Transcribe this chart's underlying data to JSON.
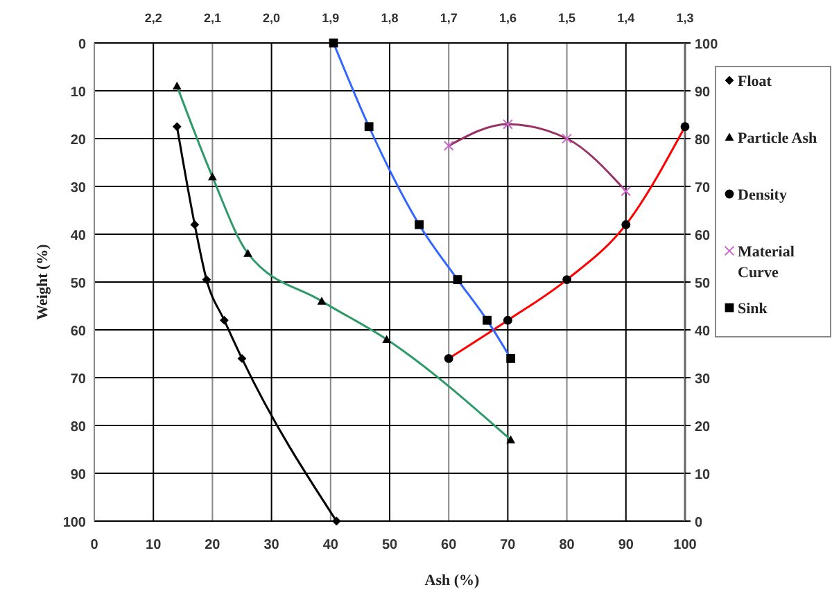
{
  "chart_data": {
    "type": "line",
    "xlabel": "Ash (%)",
    "ylabel": "Weight (%)",
    "xlim": [
      0,
      100
    ],
    "xticks": [
      0,
      10,
      20,
      30,
      40,
      50,
      60,
      70,
      80,
      90,
      100
    ],
    "ylim": [
      100,
      0
    ],
    "yticks": [
      0,
      10,
      20,
      30,
      40,
      50,
      60,
      70,
      80,
      90,
      100
    ],
    "y2lim": [
      0,
      100
    ],
    "y2ticks": [
      0,
      10,
      20,
      30,
      40,
      50,
      60,
      70,
      80,
      90,
      100
    ],
    "x2lim": [
      2.3,
      1.3
    ],
    "x2ticks": [
      {
        "value": 2.2,
        "label": "2,2"
      },
      {
        "value": 2.1,
        "label": "2,1"
      },
      {
        "value": 2.0,
        "label": "2,0"
      },
      {
        "value": 1.9,
        "label": "1,9"
      },
      {
        "value": 1.8,
        "label": "1,8"
      },
      {
        "value": 1.7,
        "label": "1,7"
      },
      {
        "value": 1.6,
        "label": "1,6"
      },
      {
        "value": 1.5,
        "label": "1,5"
      },
      {
        "value": 1.4,
        "label": "1,4"
      },
      {
        "value": 1.3,
        "label": "1,3"
      }
    ],
    "grid": true,
    "legend": "right",
    "series": [
      {
        "name": "Float",
        "color": "#000000",
        "marker": "diamond",
        "x": [
          14,
          17,
          19,
          22,
          25,
          41
        ],
        "values": [
          17.5,
          38,
          49.5,
          58,
          66,
          100
        ]
      },
      {
        "name": "Particle Ash",
        "color": "#2e9a6a",
        "marker": "triangle",
        "x": [
          14,
          20,
          26,
          38.5,
          49.5,
          70.5
        ],
        "values": [
          9,
          28,
          44,
          54,
          62,
          83
        ]
      },
      {
        "name": "Density",
        "color": "#ff0000",
        "marker": "circle",
        "x": [
          60,
          70,
          80,
          90,
          100
        ],
        "values": [
          66,
          58,
          49.5,
          38,
          17.5
        ]
      },
      {
        "name": "Material Curve",
        "color": "#993366",
        "marker": "cross",
        "x": [
          60,
          70,
          80,
          90
        ],
        "values": [
          21.5,
          17,
          20,
          31
        ]
      },
      {
        "name": "Sink",
        "color": "#3366ff",
        "marker": "square",
        "x": [
          40.5,
          46.5,
          55,
          61.5,
          66.5,
          70.5
        ],
        "values": [
          0,
          17.5,
          38,
          49.5,
          58,
          66
        ]
      }
    ]
  }
}
